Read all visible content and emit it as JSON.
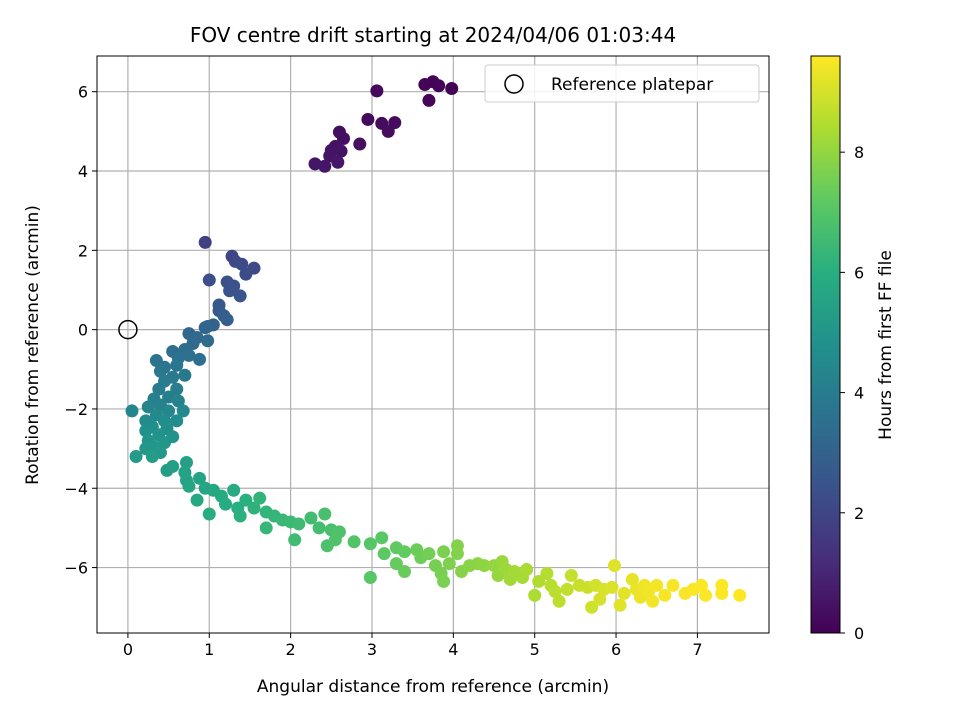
{
  "chart_data": {
    "type": "scatter",
    "title": "FOV centre drift starting at 2024/04/06 01:03:44",
    "xlabel": "Angular distance from reference (arcmin)",
    "ylabel": "Rotation from reference (arcmin)",
    "xlim": [
      -0.38,
      7.88
    ],
    "ylim": [
      -7.65,
      6.9
    ],
    "xticks": [
      "0",
      "1",
      "2",
      "3",
      "4",
      "5",
      "6",
      "7"
    ],
    "yticks": [
      "−6",
      "−4",
      "−2",
      "0",
      "2",
      "4",
      "6"
    ],
    "grid": true,
    "legend": {
      "placement": "top-right",
      "entries": [
        "Reference platepar"
      ]
    },
    "reference_point": {
      "x": 0,
      "y": 0
    },
    "colorbar": {
      "label": "Hours from first FF file",
      "range": [
        0,
        9.6
      ],
      "ticks": [
        "0",
        "2",
        "4",
        "6",
        "8"
      ],
      "colormap": "viridis"
    },
    "points": [
      {
        "x": 3.75,
        "y": 6.25,
        "h": 0.05
      },
      {
        "x": 3.82,
        "y": 6.15,
        "h": 0.08
      },
      {
        "x": 3.98,
        "y": 6.08,
        "h": 0.1
      },
      {
        "x": 3.65,
        "y": 6.18,
        "h": 0.12
      },
      {
        "x": 3.7,
        "y": 5.78,
        "h": 0.15
      },
      {
        "x": 3.06,
        "y": 6.02,
        "h": 0.2
      },
      {
        "x": 2.95,
        "y": 5.3,
        "h": 0.25
      },
      {
        "x": 3.12,
        "y": 5.2,
        "h": 0.28
      },
      {
        "x": 3.28,
        "y": 5.22,
        "h": 0.3
      },
      {
        "x": 3.2,
        "y": 5.0,
        "h": 0.32
      },
      {
        "x": 2.6,
        "y": 4.98,
        "h": 0.38
      },
      {
        "x": 2.65,
        "y": 4.82,
        "h": 0.4
      },
      {
        "x": 2.85,
        "y": 4.68,
        "h": 0.42
      },
      {
        "x": 2.55,
        "y": 4.62,
        "h": 0.45
      },
      {
        "x": 2.62,
        "y": 4.5,
        "h": 0.48
      },
      {
        "x": 2.5,
        "y": 4.52,
        "h": 0.5
      },
      {
        "x": 2.48,
        "y": 4.38,
        "h": 0.52
      },
      {
        "x": 2.3,
        "y": 4.18,
        "h": 0.55
      },
      {
        "x": 2.42,
        "y": 4.12,
        "h": 0.58
      },
      {
        "x": 2.58,
        "y": 4.22,
        "h": 0.6
      },
      {
        "x": 0.95,
        "y": 2.2,
        "h": 1.8
      },
      {
        "x": 1.28,
        "y": 1.85,
        "h": 2.0
      },
      {
        "x": 1.32,
        "y": 1.72,
        "h": 2.05
      },
      {
        "x": 1.4,
        "y": 1.65,
        "h": 2.1
      },
      {
        "x": 1.55,
        "y": 1.55,
        "h": 2.15
      },
      {
        "x": 1.45,
        "y": 1.4,
        "h": 2.2
      },
      {
        "x": 1.0,
        "y": 1.25,
        "h": 2.3
      },
      {
        "x": 1.22,
        "y": 1.2,
        "h": 2.35
      },
      {
        "x": 1.3,
        "y": 1.1,
        "h": 2.4
      },
      {
        "x": 1.25,
        "y": 0.98,
        "h": 2.45
      },
      {
        "x": 1.38,
        "y": 0.85,
        "h": 2.5
      },
      {
        "x": 1.12,
        "y": 0.62,
        "h": 2.6
      },
      {
        "x": 1.12,
        "y": 0.48,
        "h": 2.7
      },
      {
        "x": 1.18,
        "y": 0.35,
        "h": 2.8
      },
      {
        "x": 1.22,
        "y": 0.25,
        "h": 2.9
      },
      {
        "x": 1.05,
        "y": 0.12,
        "h": 3.0
      },
      {
        "x": 0.98,
        "y": 0.08,
        "h": 3.05
      },
      {
        "x": 0.95,
        "y": 0.05,
        "h": 3.1
      },
      {
        "x": 0.75,
        "y": -0.1,
        "h": 3.2
      },
      {
        "x": 0.85,
        "y": -0.2,
        "h": 3.25
      },
      {
        "x": 0.8,
        "y": -0.35,
        "h": 3.3
      },
      {
        "x": 0.98,
        "y": -0.28,
        "h": 3.35
      },
      {
        "x": 0.7,
        "y": -0.5,
        "h": 3.4
      },
      {
        "x": 0.55,
        "y": -0.55,
        "h": 3.45
      },
      {
        "x": 0.88,
        "y": -0.75,
        "h": 3.5
      },
      {
        "x": 0.75,
        "y": -0.65,
        "h": 3.55
      },
      {
        "x": 0.62,
        "y": -0.72,
        "h": 3.6
      },
      {
        "x": 0.35,
        "y": -0.78,
        "h": 3.65
      },
      {
        "x": 0.45,
        "y": -0.95,
        "h": 3.7
      },
      {
        "x": 0.6,
        "y": -0.9,
        "h": 3.75
      },
      {
        "x": 0.4,
        "y": -1.05,
        "h": 3.8
      },
      {
        "x": 0.7,
        "y": -1.15,
        "h": 3.85
      },
      {
        "x": 0.55,
        "y": -1.2,
        "h": 3.9
      },
      {
        "x": 0.45,
        "y": -1.3,
        "h": 3.95
      },
      {
        "x": 0.38,
        "y": -1.5,
        "h": 4.0
      },
      {
        "x": 0.6,
        "y": -1.5,
        "h": 4.05
      },
      {
        "x": 0.5,
        "y": -1.7,
        "h": 4.1
      },
      {
        "x": 0.32,
        "y": -1.75,
        "h": 4.15
      },
      {
        "x": 0.4,
        "y": -1.9,
        "h": 4.2
      },
      {
        "x": 0.62,
        "y": -1.8,
        "h": 4.25
      },
      {
        "x": 0.25,
        "y": -1.95,
        "h": 4.3
      },
      {
        "x": 0.05,
        "y": -2.05,
        "h": 4.35
      },
      {
        "x": 0.5,
        "y": -2.05,
        "h": 4.4
      },
      {
        "x": 0.68,
        "y": -2.05,
        "h": 4.45
      },
      {
        "x": 0.35,
        "y": -2.15,
        "h": 4.5
      },
      {
        "x": 0.22,
        "y": -2.3,
        "h": 4.55
      },
      {
        "x": 0.45,
        "y": -2.3,
        "h": 4.6
      },
      {
        "x": 0.6,
        "y": -2.3,
        "h": 4.65
      },
      {
        "x": 0.3,
        "y": -2.45,
        "h": 4.7
      },
      {
        "x": 0.48,
        "y": -2.5,
        "h": 4.75
      },
      {
        "x": 0.22,
        "y": -2.55,
        "h": 4.8
      },
      {
        "x": 0.38,
        "y": -2.65,
        "h": 4.85
      },
      {
        "x": 0.55,
        "y": -2.7,
        "h": 4.9
      },
      {
        "x": 0.25,
        "y": -2.8,
        "h": 4.95
      },
      {
        "x": 0.45,
        "y": -2.85,
        "h": 5.0
      },
      {
        "x": 0.32,
        "y": -2.95,
        "h": 5.05
      },
      {
        "x": 0.22,
        "y": -3.0,
        "h": 5.1
      },
      {
        "x": 0.4,
        "y": -3.1,
        "h": 5.15
      },
      {
        "x": 0.1,
        "y": -3.2,
        "h": 5.2
      },
      {
        "x": 0.3,
        "y": -3.2,
        "h": 5.25
      },
      {
        "x": 0.48,
        "y": -3.55,
        "h": 5.3
      },
      {
        "x": 0.55,
        "y": -3.45,
        "h": 5.35
      },
      {
        "x": 0.72,
        "y": -3.35,
        "h": 5.4
      },
      {
        "x": 0.7,
        "y": -3.6,
        "h": 5.45
      },
      {
        "x": 0.72,
        "y": -3.8,
        "h": 5.5
      },
      {
        "x": 0.88,
        "y": -3.75,
        "h": 5.55
      },
      {
        "x": 0.75,
        "y": -3.95,
        "h": 5.6
      },
      {
        "x": 0.95,
        "y": -4.0,
        "h": 5.65
      },
      {
        "x": 1.05,
        "y": -4.05,
        "h": 5.7
      },
      {
        "x": 0.85,
        "y": -4.3,
        "h": 5.75
      },
      {
        "x": 1.15,
        "y": -4.2,
        "h": 5.8
      },
      {
        "x": 1.3,
        "y": -4.05,
        "h": 5.85
      },
      {
        "x": 1.2,
        "y": -4.4,
        "h": 5.9
      },
      {
        "x": 1.0,
        "y": -4.65,
        "h": 5.95
      },
      {
        "x": 1.35,
        "y": -4.5,
        "h": 6.0
      },
      {
        "x": 1.45,
        "y": -4.3,
        "h": 6.05
      },
      {
        "x": 1.38,
        "y": -4.7,
        "h": 6.1
      },
      {
        "x": 1.55,
        "y": -4.5,
        "h": 6.15
      },
      {
        "x": 1.62,
        "y": -4.25,
        "h": 6.2
      },
      {
        "x": 1.7,
        "y": -4.6,
        "h": 6.25
      },
      {
        "x": 1.8,
        "y": -4.7,
        "h": 6.3
      },
      {
        "x": 1.7,
        "y": -5.0,
        "h": 6.35
      },
      {
        "x": 1.9,
        "y": -4.8,
        "h": 6.4
      },
      {
        "x": 2.0,
        "y": -4.85,
        "h": 6.45
      },
      {
        "x": 2.1,
        "y": -4.9,
        "h": 6.5
      },
      {
        "x": 2.05,
        "y": -5.3,
        "h": 6.55
      },
      {
        "x": 2.25,
        "y": -4.75,
        "h": 6.6
      },
      {
        "x": 2.35,
        "y": -5.0,
        "h": 6.65
      },
      {
        "x": 2.42,
        "y": -4.65,
        "h": 6.7
      },
      {
        "x": 2.5,
        "y": -5.05,
        "h": 6.75
      },
      {
        "x": 2.45,
        "y": -5.45,
        "h": 6.8
      },
      {
        "x": 2.6,
        "y": -5.1,
        "h": 6.85
      },
      {
        "x": 2.55,
        "y": -5.3,
        "h": 6.9
      },
      {
        "x": 2.78,
        "y": -5.35,
        "h": 6.95
      },
      {
        "x": 2.98,
        "y": -5.4,
        "h": 7.0
      },
      {
        "x": 2.98,
        "y": -6.25,
        "h": 7.05
      },
      {
        "x": 3.12,
        "y": -5.25,
        "h": 7.1
      },
      {
        "x": 3.15,
        "y": -5.65,
        "h": 7.15
      },
      {
        "x": 3.3,
        "y": -5.5,
        "h": 7.2
      },
      {
        "x": 3.4,
        "y": -5.6,
        "h": 7.25
      },
      {
        "x": 3.3,
        "y": -5.9,
        "h": 7.3
      },
      {
        "x": 3.4,
        "y": -6.1,
        "h": 7.35
      },
      {
        "x": 3.55,
        "y": -5.55,
        "h": 7.4
      },
      {
        "x": 3.6,
        "y": -5.75,
        "h": 7.45
      },
      {
        "x": 3.7,
        "y": -5.65,
        "h": 7.5
      },
      {
        "x": 3.78,
        "y": -5.95,
        "h": 7.55
      },
      {
        "x": 3.85,
        "y": -6.15,
        "h": 7.6
      },
      {
        "x": 3.88,
        "y": -6.35,
        "h": 7.62
      },
      {
        "x": 3.88,
        "y": -5.6,
        "h": 7.65
      },
      {
        "x": 3.95,
        "y": -5.9,
        "h": 7.7
      },
      {
        "x": 4.05,
        "y": -5.65,
        "h": 7.75
      },
      {
        "x": 4.05,
        "y": -5.45,
        "h": 7.78
      },
      {
        "x": 4.1,
        "y": -6.1,
        "h": 7.8
      },
      {
        "x": 4.2,
        "y": -5.95,
        "h": 7.85
      },
      {
        "x": 4.3,
        "y": -5.9,
        "h": 7.9
      },
      {
        "x": 4.38,
        "y": -5.95,
        "h": 7.95
      },
      {
        "x": 4.5,
        "y": -5.95,
        "h": 8.0
      },
      {
        "x": 4.55,
        "y": -6.2,
        "h": 8.05
      },
      {
        "x": 4.6,
        "y": -5.85,
        "h": 8.1
      },
      {
        "x": 4.65,
        "y": -6.05,
        "h": 8.15
      },
      {
        "x": 4.7,
        "y": -6.3,
        "h": 8.2
      },
      {
        "x": 4.75,
        "y": -6.1,
        "h": 8.25
      },
      {
        "x": 4.85,
        "y": -6.25,
        "h": 8.3
      },
      {
        "x": 4.9,
        "y": -6.05,
        "h": 8.35
      },
      {
        "x": 5.0,
        "y": -6.7,
        "h": 8.4
      },
      {
        "x": 5.05,
        "y": -6.35,
        "h": 8.45
      },
      {
        "x": 5.15,
        "y": -6.15,
        "h": 8.5
      },
      {
        "x": 5.2,
        "y": -6.45,
        "h": 8.55
      },
      {
        "x": 5.25,
        "y": -6.6,
        "h": 8.6
      },
      {
        "x": 5.3,
        "y": -6.85,
        "h": 8.65
      },
      {
        "x": 5.4,
        "y": -6.55,
        "h": 8.7
      },
      {
        "x": 5.45,
        "y": -6.2,
        "h": 8.75
      },
      {
        "x": 5.55,
        "y": -6.45,
        "h": 8.8
      },
      {
        "x": 5.65,
        "y": -6.5,
        "h": 8.85
      },
      {
        "x": 5.7,
        "y": -7.0,
        "h": 8.9
      },
      {
        "x": 5.75,
        "y": -6.45,
        "h": 8.95
      },
      {
        "x": 5.8,
        "y": -6.8,
        "h": 9.0
      },
      {
        "x": 5.85,
        "y": -6.55,
        "h": 9.05
      },
      {
        "x": 5.95,
        "y": -6.5,
        "h": 9.1
      },
      {
        "x": 5.98,
        "y": -5.95,
        "h": 9.12
      },
      {
        "x": 6.05,
        "y": -6.95,
        "h": 9.15
      },
      {
        "x": 6.1,
        "y": -6.65,
        "h": 9.2
      },
      {
        "x": 6.2,
        "y": -6.3,
        "h": 9.25
      },
      {
        "x": 6.25,
        "y": -6.55,
        "h": 9.3
      },
      {
        "x": 6.3,
        "y": -6.75,
        "h": 9.35
      },
      {
        "x": 6.35,
        "y": -6.45,
        "h": 9.38
      },
      {
        "x": 6.4,
        "y": -6.6,
        "h": 9.4
      },
      {
        "x": 6.45,
        "y": -6.85,
        "h": 9.42
      },
      {
        "x": 6.5,
        "y": -6.45,
        "h": 9.45
      },
      {
        "x": 6.6,
        "y": -6.7,
        "h": 9.48
      },
      {
        "x": 6.7,
        "y": -6.45,
        "h": 9.5
      },
      {
        "x": 6.85,
        "y": -6.65,
        "h": 9.52
      },
      {
        "x": 6.95,
        "y": -6.55,
        "h": 9.54
      },
      {
        "x": 7.05,
        "y": -6.45,
        "h": 9.56
      },
      {
        "x": 7.1,
        "y": -6.7,
        "h": 9.57
      },
      {
        "x": 7.3,
        "y": -6.45,
        "h": 9.58
      },
      {
        "x": 7.3,
        "y": -6.65,
        "h": 9.59
      },
      {
        "x": 7.52,
        "y": -6.7,
        "h": 9.6
      }
    ]
  }
}
